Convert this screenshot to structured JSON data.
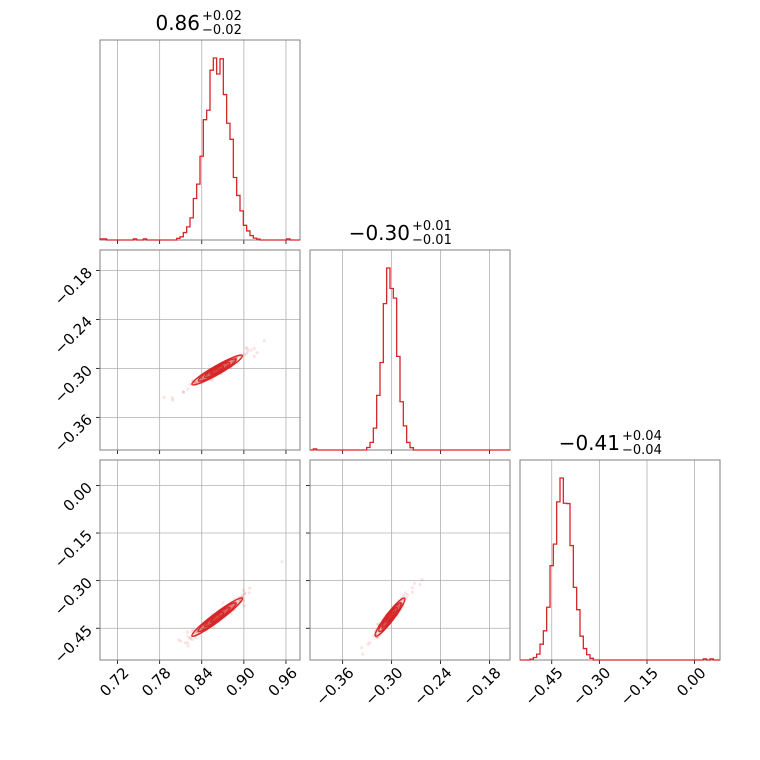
{
  "chart_data": {
    "type": "corner",
    "colors": {
      "series": "#d62728",
      "frame": "#808080",
      "grid": "#b0b0b0"
    },
    "parameters": [
      {
        "index": 0,
        "range": [
          0.695,
          0.98
        ],
        "ticks": [
          0.72,
          0.78,
          0.84,
          0.9,
          0.96
        ],
        "tick_labels": [
          "0.72",
          "0.78",
          "0.84",
          "0.90",
          "0.96"
        ],
        "title": {
          "value": "0.86",
          "upper": "+0.02",
          "lower": "−0.02"
        }
      },
      {
        "index": 1,
        "range": [
          -0.4,
          -0.155
        ],
        "ticks": [
          -0.36,
          -0.3,
          -0.24,
          -0.18
        ],
        "tick_labels": [
          "−0.36",
          "−0.30",
          "−0.24",
          "−0.18"
        ],
        "title": {
          "value": "−0.30",
          "upper": "+0.01",
          "lower": "−0.01"
        }
      },
      {
        "index": 2,
        "range": [
          -0.55,
          0.08
        ],
        "ticks": [
          -0.45,
          -0.3,
          -0.15,
          0.0
        ],
        "tick_labels": [
          "−0.45",
          "−0.30",
          "−0.15",
          "0.00"
        ],
        "title": {
          "value": "−0.41",
          "upper": "+0.04",
          "lower": "−0.04"
        }
      }
    ],
    "histograms": [
      {
        "param": 0,
        "mean": 0.862,
        "sd": 0.018,
        "min": 0.695,
        "max": 0.98,
        "bins": 60
      },
      {
        "param": 1,
        "mean": -0.302,
        "sd": 0.009,
        "min": -0.4,
        "max": -0.155,
        "bins": 60
      },
      {
        "param": 2,
        "mean": -0.415,
        "sd": 0.03,
        "min": -0.55,
        "max": 0.08,
        "bins": 60
      }
    ],
    "pairs": [
      {
        "x_param": 0,
        "y_param": 1,
        "mean": [
          0.862,
          -0.302
        ],
        "sd": [
          0.018,
          0.009
        ],
        "rho": 0.97
      },
      {
        "x_param": 0,
        "y_param": 2,
        "mean": [
          0.862,
          -0.415
        ],
        "sd": [
          0.018,
          0.03
        ],
        "rho": 0.98
      },
      {
        "x_param": 1,
        "y_param": 2,
        "mean": [
          -0.302,
          -0.415
        ],
        "sd": [
          0.009,
          0.03
        ],
        "rho": 0.97
      }
    ],
    "contour_levels": [
      0.5,
      1.0,
      1.5,
      2.0
    ],
    "grid": true
  }
}
